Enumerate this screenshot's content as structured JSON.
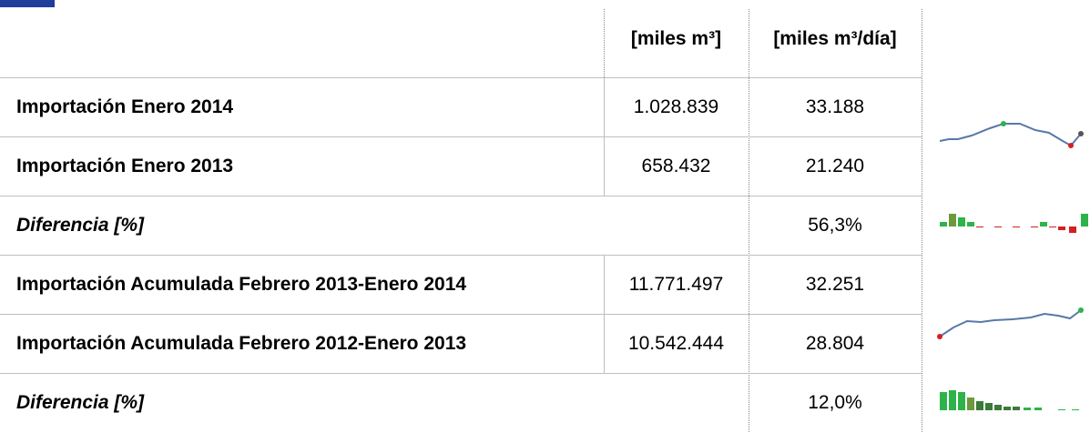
{
  "table": {
    "headers": [
      "[miles m³]",
      "[miles m³/día]"
    ],
    "rows": [
      {
        "label": "Importación Enero 2014",
        "total": "1.028.839",
        "daily": "33.188"
      },
      {
        "label": "Importación Enero 2013",
        "total": "658.432",
        "daily": "21.240"
      },
      {
        "label": "Diferencia [%]",
        "daily": "56,3%",
        "italic": true
      },
      {
        "label": "Importación Acumulada Febrero 2013-Enero 2014",
        "total": "11.771.497",
        "daily": "32.251"
      },
      {
        "label": "Importación Acumulada Febrero 2012-Enero 2013",
        "total": "10.542.444",
        "daily": "28.804"
      },
      {
        "label": "Diferencia [%]",
        "daily": "12,0%",
        "italic": true
      }
    ]
  }
}
